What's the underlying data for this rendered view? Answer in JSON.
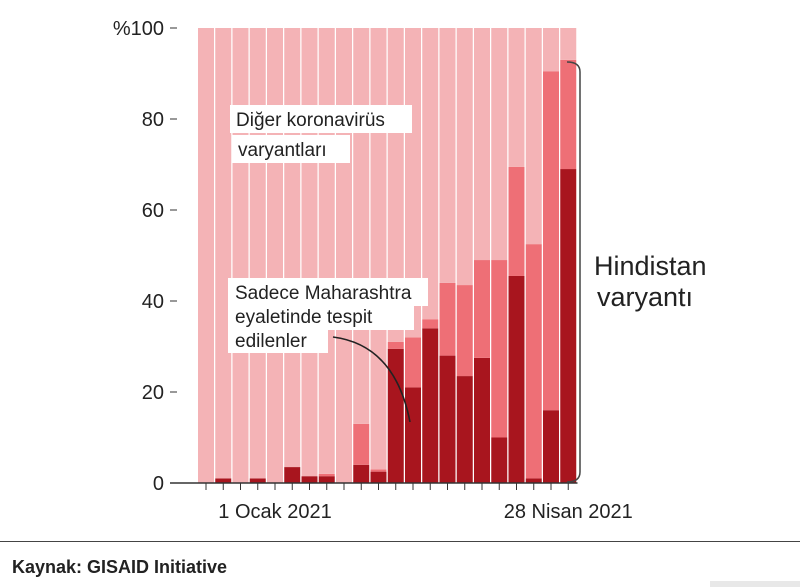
{
  "chart_data": {
    "type": "bar",
    "stacked": true,
    "y_axis": {
      "range": [
        0,
        100
      ],
      "ticks": [
        0,
        20,
        40,
        60,
        80,
        100
      ],
      "tick_labels": [
        "0",
        "20",
        "40",
        "60",
        "80",
        "%100"
      ]
    },
    "x_axis": {
      "labels": [
        {
          "text": "1 Ocak 2021",
          "at_bar": 4
        },
        {
          "text": "28 Nisan 2021",
          "at_bar": 21
        }
      ],
      "tick_count": 22
    },
    "series": [
      {
        "name": "Sadece Maharashtra eyaletinde tespit edilenler",
        "color": "#a8151e",
        "values": [
          0,
          1,
          0,
          1,
          0,
          3.5,
          1.5,
          1.5,
          0,
          4,
          2.5,
          29.5,
          21,
          34,
          28,
          23.5,
          27.5,
          10,
          45.5,
          1,
          16,
          69
        ]
      },
      {
        "name": "Hindistan varyantı (diğer)",
        "color": "#ee6f76",
        "values": [
          0,
          0,
          0,
          0,
          0,
          0,
          0,
          0.5,
          0,
          9,
          0.5,
          1.5,
          11,
          2,
          16,
          20,
          21.5,
          39,
          24,
          51.5,
          74.5,
          24
        ]
      },
      {
        "name": "Diğer koronavirüs varyantları",
        "color": "#f4b3b6",
        "values": [
          100,
          99,
          100,
          99,
          100,
          96.5,
          98.5,
          98,
          100,
          87,
          97,
          69,
          68,
          64,
          56,
          56.5,
          51,
          51,
          30.5,
          47.5,
          9.5,
          7
        ]
      }
    ],
    "annotations": {
      "other_label": [
        "Diğer koronavirüs",
        "varyantları"
      ],
      "maharashtra_label": [
        "Sadece Maharashtra",
        "eyaletinde tespit",
        "edilenler"
      ],
      "bracket_label": [
        "Hindistan",
        "varyantı"
      ]
    }
  },
  "footer": {
    "source": "Kaynak: GISAID Initiative"
  }
}
